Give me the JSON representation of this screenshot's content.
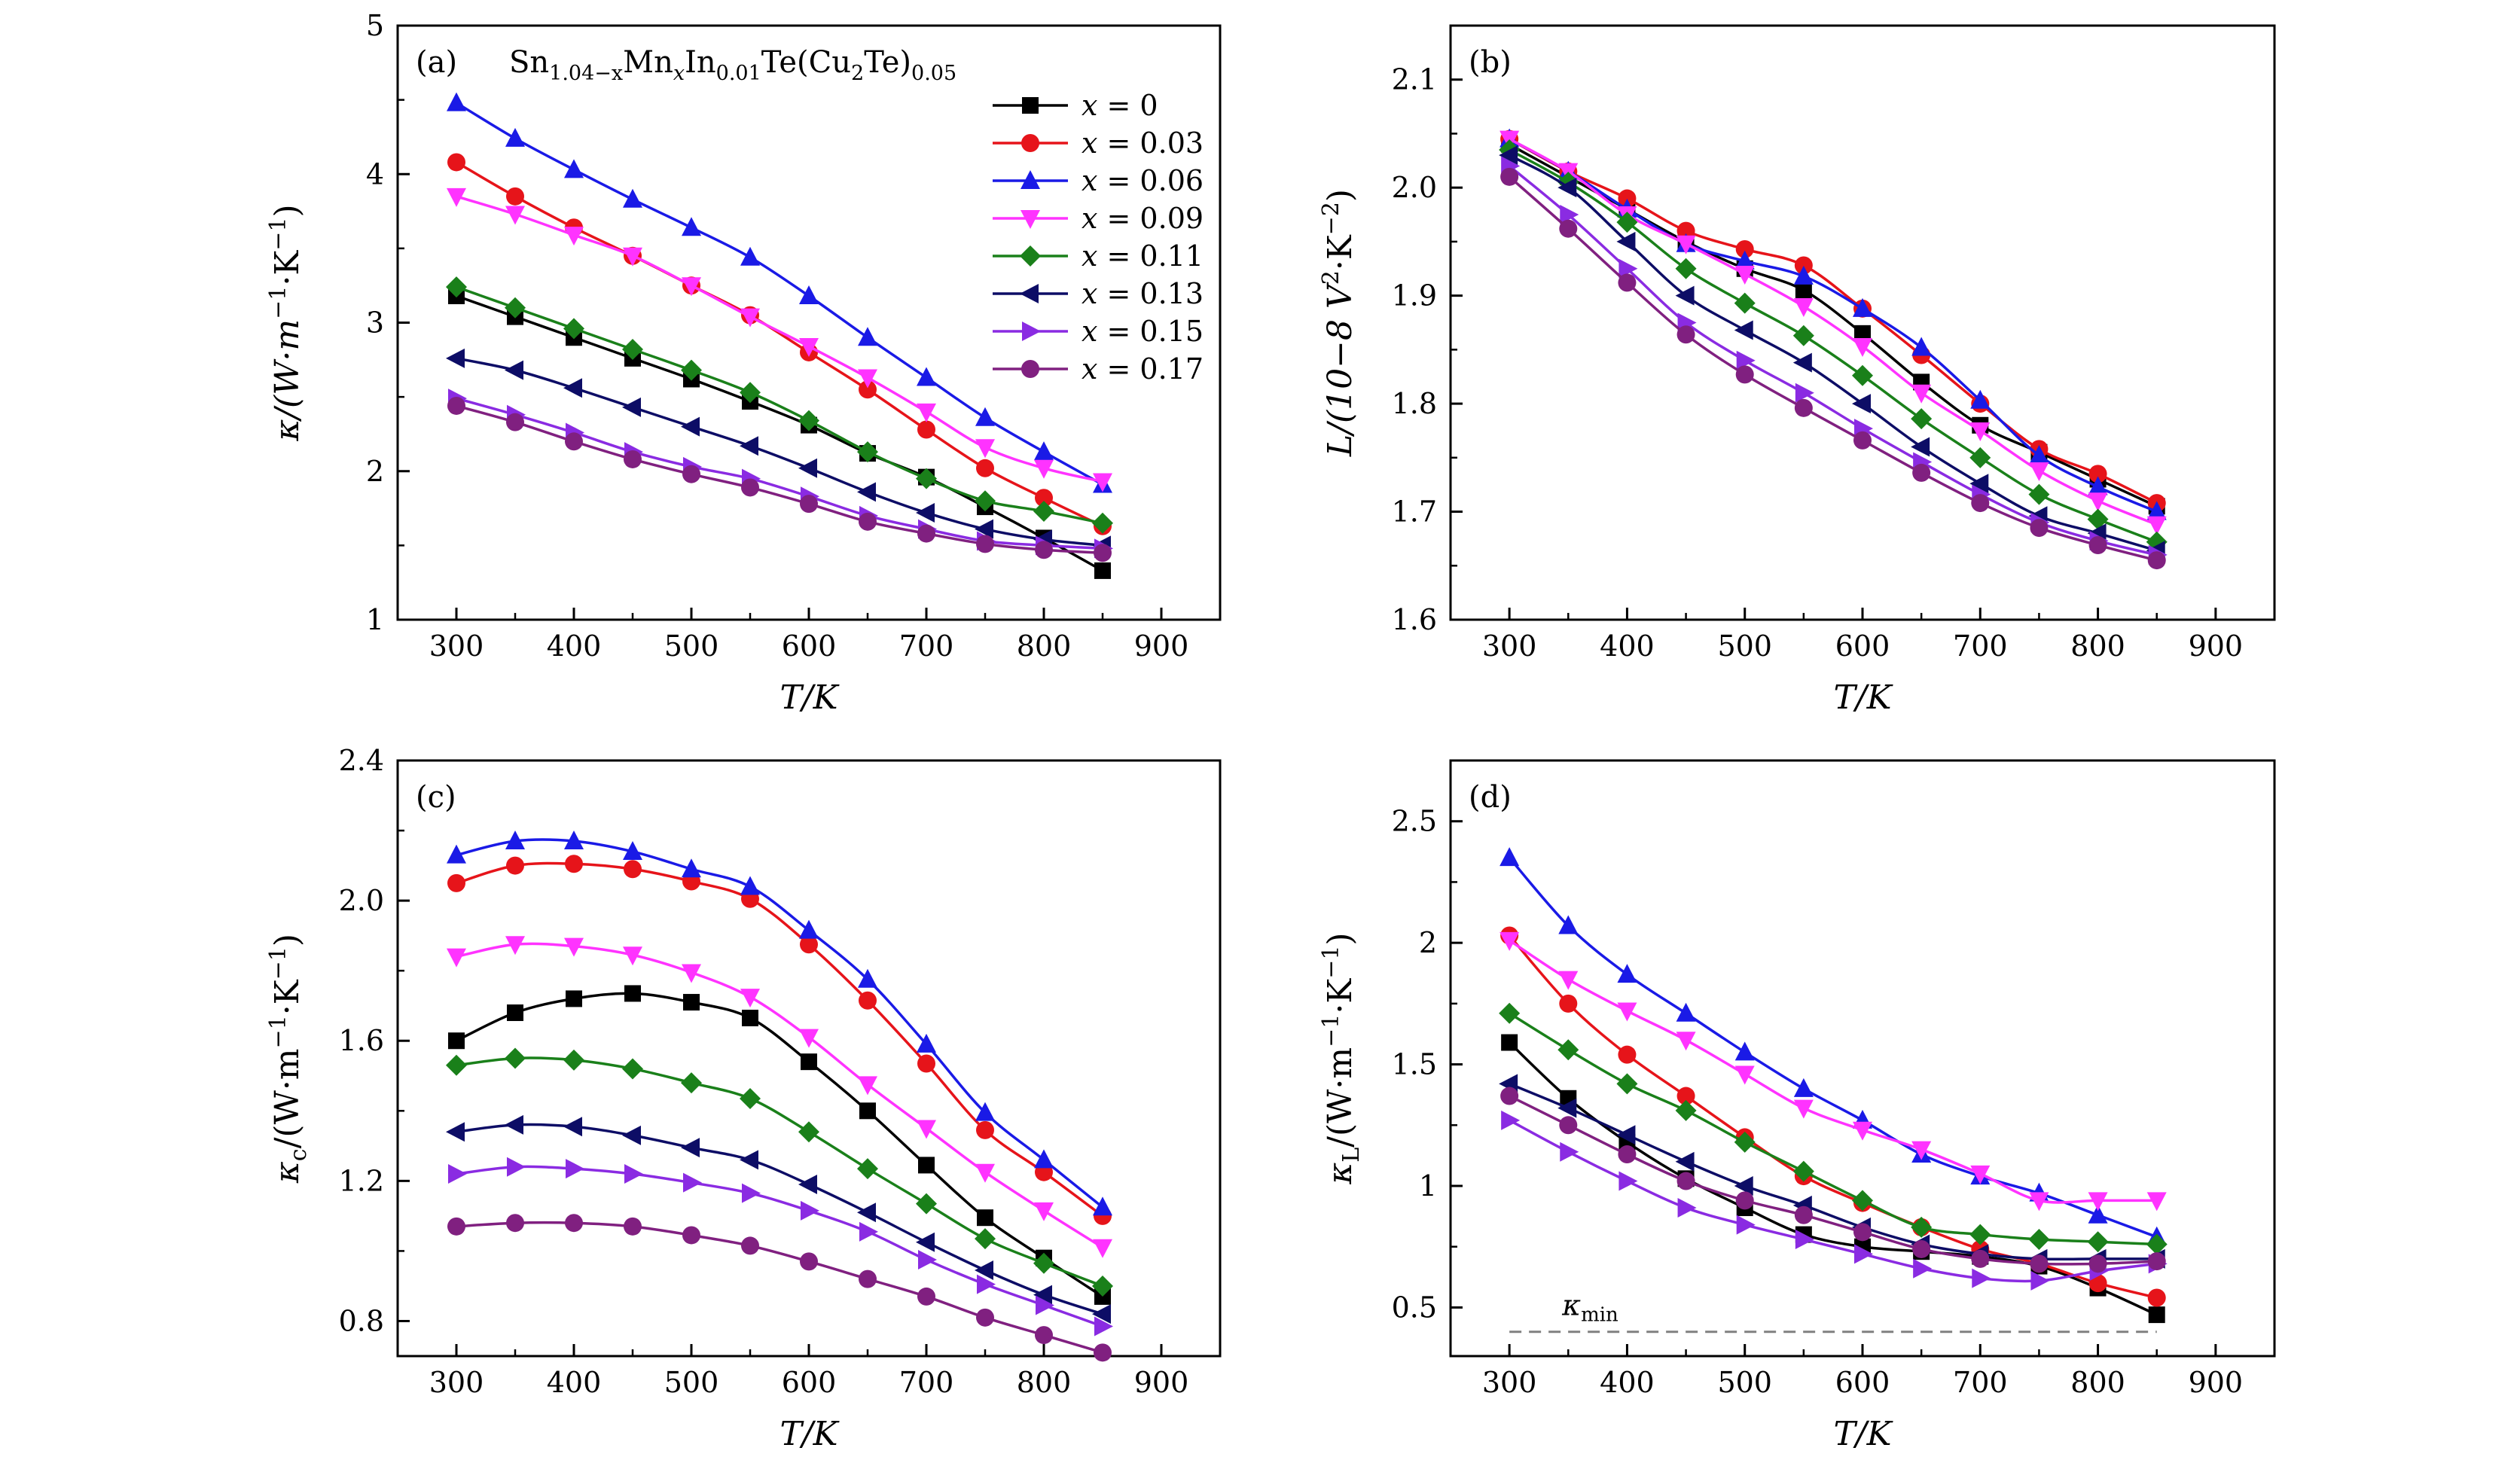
{
  "chart_data": [
    {
      "panel": "(a)",
      "type": "line",
      "annotation": "Sn1.04−xMnxIn0.01Te(Cu2Te)0.05",
      "ylabel": "κ/(W·m−1·K−1)",
      "xlabel": "T/K",
      "xlim": [
        250,
        950
      ],
      "ylim": [
        1,
        5
      ],
      "xticks": [
        300,
        400,
        500,
        600,
        700,
        800,
        900
      ],
      "yticks": [
        1,
        2,
        3,
        4,
        5
      ],
      "legend_position": "top-right",
      "x": [
        300,
        350,
        400,
        450,
        500,
        550,
        600,
        650,
        700,
        750,
        800,
        850
      ],
      "series": [
        {
          "name": "x = 0",
          "color": "#000000",
          "marker": "square",
          "values": [
            3.18,
            3.04,
            2.9,
            2.76,
            2.62,
            2.47,
            2.31,
            2.12,
            1.96,
            1.76,
            1.55,
            1.33
          ]
        },
        {
          "name": "x = 0.03",
          "color": "#e6141a",
          "marker": "circle",
          "values": [
            4.08,
            3.85,
            3.64,
            3.45,
            3.25,
            3.05,
            2.8,
            2.55,
            2.28,
            2.02,
            1.82,
            1.63
          ]
        },
        {
          "name": "x = 0.06",
          "color": "#1a1ae6",
          "marker": "triangle-up",
          "values": [
            4.48,
            4.24,
            4.03,
            3.83,
            3.64,
            3.44,
            3.18,
            2.9,
            2.63,
            2.36,
            2.13,
            1.91
          ]
        },
        {
          "name": "x = 0.09",
          "color": "#ff33ff",
          "marker": "triangle-down",
          "values": [
            3.85,
            3.73,
            3.59,
            3.45,
            3.25,
            3.04,
            2.84,
            2.63,
            2.4,
            2.16,
            2.02,
            1.93
          ]
        },
        {
          "name": "x = 0.11",
          "color": "#1a801a",
          "marker": "diamond",
          "values": [
            3.24,
            3.1,
            2.96,
            2.82,
            2.68,
            2.53,
            2.34,
            2.13,
            1.95,
            1.8,
            1.73,
            1.65
          ]
        },
        {
          "name": "x = 0.13",
          "color": "#0d0d66",
          "marker": "triangle-left",
          "values": [
            2.76,
            2.68,
            2.56,
            2.43,
            2.3,
            2.17,
            2.02,
            1.86,
            1.72,
            1.61,
            1.54,
            1.5
          ]
        },
        {
          "name": "x = 0.15",
          "color": "#8a2be2",
          "marker": "triangle-right",
          "values": [
            2.49,
            2.38,
            2.26,
            2.13,
            2.03,
            1.95,
            1.83,
            1.7,
            1.61,
            1.53,
            1.5,
            1.48
          ]
        },
        {
          "name": "x = 0.17",
          "color": "#802080",
          "marker": "circle",
          "values": [
            2.44,
            2.33,
            2.2,
            2.08,
            1.98,
            1.89,
            1.78,
            1.66,
            1.58,
            1.51,
            1.47,
            1.45
          ]
        }
      ]
    },
    {
      "panel": "(b)",
      "type": "line",
      "ylabel": "L/(10−8 V2·K−2)",
      "xlabel": "T/K",
      "xlim": [
        250,
        950
      ],
      "ylim": [
        1.6,
        2.15
      ],
      "xticks": [
        300,
        400,
        500,
        600,
        700,
        800,
        900
      ],
      "yticks": [
        1.6,
        1.7,
        1.8,
        1.9,
        2.0,
        2.1
      ],
      "x": [
        300,
        350,
        400,
        450,
        500,
        550,
        600,
        650,
        700,
        750,
        800,
        850
      ],
      "series": [
        {
          "color": "#000000",
          "marker": "square",
          "values": [
            2.04,
            2.01,
            1.98,
            1.95,
            1.925,
            1.905,
            1.865,
            1.82,
            1.78,
            1.755,
            1.73,
            1.705
          ]
        },
        {
          "color": "#e6141a",
          "marker": "circle",
          "values": [
            2.045,
            2.015,
            1.99,
            1.96,
            1.943,
            1.928,
            1.888,
            1.845,
            1.8,
            1.758,
            1.735,
            1.708
          ]
        },
        {
          "color": "#1a1ae6",
          "marker": "triangle-up",
          "values": [
            2.045,
            2.015,
            1.98,
            1.948,
            1.932,
            1.918,
            1.888,
            1.852,
            1.803,
            1.752,
            1.723,
            1.7
          ]
        },
        {
          "color": "#ff33ff",
          "marker": "triangle-down",
          "values": [
            2.045,
            2.015,
            1.975,
            1.948,
            1.92,
            1.89,
            1.853,
            1.81,
            1.775,
            1.738,
            1.71,
            1.688
          ]
        },
        {
          "color": "#1a801a",
          "marker": "diamond",
          "values": [
            2.035,
            2.005,
            1.968,
            1.925,
            1.893,
            1.863,
            1.826,
            1.786,
            1.75,
            1.716,
            1.693,
            1.672
          ]
        },
        {
          "color": "#0d0d66",
          "marker": "triangle-left",
          "values": [
            2.03,
            2.0,
            1.95,
            1.9,
            1.868,
            1.838,
            1.8,
            1.76,
            1.726,
            1.696,
            1.68,
            1.664
          ]
        },
        {
          "color": "#8a2be2",
          "marker": "triangle-right",
          "values": [
            2.02,
            1.975,
            1.925,
            1.875,
            1.84,
            1.81,
            1.777,
            1.746,
            1.716,
            1.69,
            1.673,
            1.66
          ]
        },
        {
          "color": "#802080",
          "marker": "circle",
          "values": [
            2.01,
            1.962,
            1.912,
            1.864,
            1.827,
            1.796,
            1.766,
            1.736,
            1.708,
            1.685,
            1.669,
            1.655
          ]
        }
      ]
    },
    {
      "panel": "(c)",
      "type": "line",
      "ylabel": "κc/(W·m−1·K−1)",
      "xlabel": "T/K",
      "xlim": [
        250,
        950
      ],
      "ylim": [
        0.7,
        2.4
      ],
      "xticks": [
        300,
        400,
        500,
        600,
        700,
        800,
        900
      ],
      "yticks": [
        0.8,
        1.2,
        1.6,
        2.0,
        2.4
      ],
      "x": [
        300,
        350,
        400,
        450,
        500,
        550,
        600,
        650,
        700,
        750,
        800,
        850
      ],
      "series": [
        {
          "color": "#000000",
          "marker": "square",
          "values": [
            1.6,
            1.68,
            1.72,
            1.735,
            1.71,
            1.665,
            1.54,
            1.4,
            1.245,
            1.095,
            0.98,
            0.87
          ]
        },
        {
          "color": "#e6141a",
          "marker": "circle",
          "values": [
            2.05,
            2.1,
            2.105,
            2.09,
            2.055,
            2.005,
            1.875,
            1.715,
            1.535,
            1.345,
            1.225,
            1.1
          ]
        },
        {
          "color": "#1a1ae6",
          "marker": "triangle-up",
          "values": [
            2.13,
            2.17,
            2.17,
            2.14,
            2.09,
            2.04,
            1.915,
            1.775,
            1.59,
            1.395,
            1.26,
            1.125
          ]
        },
        {
          "color": "#ff33ff",
          "marker": "triangle-down",
          "values": [
            1.84,
            1.875,
            1.87,
            1.845,
            1.795,
            1.725,
            1.61,
            1.475,
            1.35,
            1.225,
            1.115,
            1.01
          ]
        },
        {
          "color": "#1a801a",
          "marker": "diamond",
          "values": [
            1.53,
            1.55,
            1.545,
            1.52,
            1.48,
            1.435,
            1.34,
            1.235,
            1.135,
            1.035,
            0.965,
            0.9
          ]
        },
        {
          "color": "#0d0d66",
          "marker": "triangle-left",
          "values": [
            1.34,
            1.36,
            1.355,
            1.33,
            1.295,
            1.26,
            1.19,
            1.11,
            1.025,
            0.945,
            0.875,
            0.82
          ]
        },
        {
          "color": "#8a2be2",
          "marker": "triangle-right",
          "values": [
            1.22,
            1.24,
            1.235,
            1.22,
            1.195,
            1.165,
            1.115,
            1.055,
            0.975,
            0.905,
            0.845,
            0.785
          ]
        },
        {
          "color": "#802080",
          "marker": "circle",
          "values": [
            1.07,
            1.08,
            1.08,
            1.07,
            1.045,
            1.015,
            0.97,
            0.92,
            0.87,
            0.81,
            0.76,
            0.71
          ]
        }
      ]
    },
    {
      "panel": "(d)",
      "type": "line",
      "ylabel": "κL/(W·m−1·K−1)",
      "xlabel": "T/K",
      "xlim": [
        250,
        950
      ],
      "ylim": [
        0.3,
        2.75
      ],
      "xticks": [
        300,
        400,
        500,
        600,
        700,
        800,
        900
      ],
      "yticks": [
        0.5,
        1.0,
        1.5,
        2.0,
        2.5
      ],
      "reference_line": {
        "label": "κmin",
        "value": 0.4,
        "x_range": [
          300,
          850
        ],
        "style": "dashed",
        "color": "#808080"
      },
      "x": [
        300,
        350,
        400,
        450,
        500,
        550,
        600,
        650,
        700,
        750,
        800,
        850
      ],
      "series": [
        {
          "color": "#000000",
          "marker": "square",
          "values": [
            1.59,
            1.36,
            1.18,
            1.03,
            0.91,
            0.8,
            0.75,
            0.73,
            0.71,
            0.67,
            0.58,
            0.47
          ]
        },
        {
          "color": "#e6141a",
          "marker": "circle",
          "values": [
            2.03,
            1.75,
            1.54,
            1.37,
            1.2,
            1.04,
            0.93,
            0.83,
            0.74,
            0.68,
            0.6,
            0.54
          ]
        },
        {
          "color": "#1a1ae6",
          "marker": "triangle-up",
          "values": [
            2.35,
            2.07,
            1.87,
            1.71,
            1.55,
            1.4,
            1.27,
            1.13,
            1.04,
            0.97,
            0.88,
            0.79
          ]
        },
        {
          "color": "#ff33ff",
          "marker": "triangle-down",
          "values": [
            2.01,
            1.85,
            1.72,
            1.6,
            1.46,
            1.32,
            1.23,
            1.15,
            1.05,
            0.94,
            0.94,
            0.94
          ]
        },
        {
          "color": "#1a801a",
          "marker": "diamond",
          "values": [
            1.71,
            1.56,
            1.42,
            1.31,
            1.18,
            1.06,
            0.94,
            0.83,
            0.8,
            0.78,
            0.77,
            0.76
          ]
        },
        {
          "color": "#0d0d66",
          "marker": "triangle-left",
          "values": [
            1.42,
            1.32,
            1.21,
            1.1,
            1.0,
            0.92,
            0.83,
            0.76,
            0.72,
            0.7,
            0.7,
            0.7
          ]
        },
        {
          "color": "#8a2be2",
          "marker": "triangle-right",
          "values": [
            1.27,
            1.14,
            1.02,
            0.91,
            0.84,
            0.78,
            0.72,
            0.66,
            0.62,
            0.61,
            0.65,
            0.68
          ]
        },
        {
          "color": "#802080",
          "marker": "circle",
          "values": [
            1.37,
            1.25,
            1.13,
            1.02,
            0.94,
            0.88,
            0.81,
            0.74,
            0.7,
            0.68,
            0.68,
            0.69
          ]
        }
      ]
    }
  ]
}
